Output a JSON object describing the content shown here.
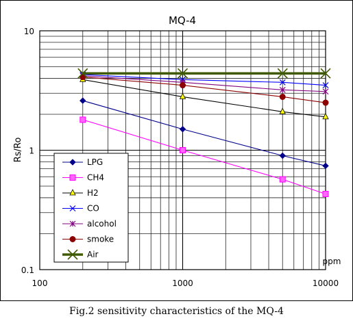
{
  "chart_data": {
    "type": "line",
    "title": "MQ-4",
    "xlabel": "",
    "ylabel": "Rs/Ro",
    "x_unit": "ppm",
    "xscale": "log",
    "yscale": "log",
    "xlim": [
      100,
      10000
    ],
    "ylim": [
      0.1,
      10
    ],
    "x_ticks": [
      100,
      1000,
      10000
    ],
    "x_tick_labels": [
      "100",
      "1000",
      "10000"
    ],
    "y_ticks": [
      0.1,
      1,
      10
    ],
    "y_tick_labels": [
      "0.1",
      "1",
      "10"
    ],
    "grid": true,
    "legend_position": "bottom-left",
    "x": [
      200,
      1000,
      5000,
      10000
    ],
    "series": [
      {
        "name": "LPG",
        "values": [
          2.6,
          1.5,
          0.9,
          0.74
        ],
        "color": "#00008B",
        "marker": "diamond"
      },
      {
        "name": "CH4",
        "values": [
          1.8,
          1.0,
          0.57,
          0.43
        ],
        "color": "#FF00FF",
        "marker": "square"
      },
      {
        "name": "H2",
        "values": [
          3.9,
          2.8,
          2.1,
          1.9
        ],
        "color": "#000000",
        "marker": "triangle"
      },
      {
        "name": "CO",
        "values": [
          4.3,
          3.9,
          3.7,
          3.5
        ],
        "color": "#0000FF",
        "marker": "x"
      },
      {
        "name": "alcohol",
        "values": [
          4.2,
          3.7,
          3.2,
          3.1
        ],
        "color": "#800080",
        "marker": "star"
      },
      {
        "name": "smoke",
        "values": [
          4.1,
          3.5,
          2.8,
          2.5
        ],
        "color": "#8B0000",
        "marker": "circle"
      },
      {
        "name": "Air",
        "values": [
          4.4,
          4.4,
          4.4,
          4.4
        ],
        "color": "#3F5A00",
        "marker": "x"
      }
    ]
  },
  "caption": "Fig.2 sensitivity characteristics of the MQ-4"
}
